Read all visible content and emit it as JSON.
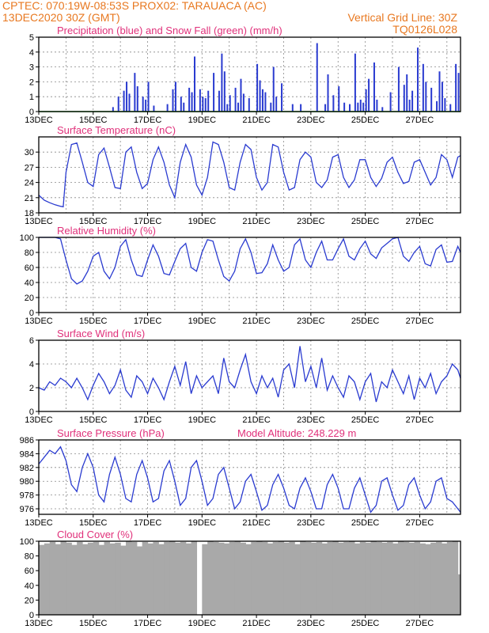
{
  "header": {
    "line1_left": "CPTEC:   070:19W-08:53S   PROX02: TARAUACA (AC)",
    "line2_left": "13DEC2020 30Z (GMT)",
    "line2_right": "Vertical Grid Line: 30Z",
    "line3_right": "TQ0126L028"
  },
  "colors": {
    "header": "#e87820",
    "title": "#e0307a",
    "series": "#2a3bd0",
    "snow": "#1fa01f",
    "cloud": "#a9a9a9",
    "grid": "#888888"
  },
  "x_labels": [
    "13DEC",
    "15DEC",
    "17DEC",
    "19DEC",
    "21DEC",
    "23DEC",
    "25DEC",
    "27DEC"
  ],
  "chart_data": [
    {
      "type": "bar",
      "title": "Precipitation (blue) and Snow Fall (green) (mm/h)",
      "ylim": [
        0,
        5
      ],
      "yticks": [
        0,
        1,
        2,
        3,
        4,
        5
      ],
      "series": [
        {
          "name": "Precipitation",
          "x": [
            2.7,
            2.9,
            3.1,
            3.2,
            3.3,
            3.5,
            3.6,
            3.8,
            3.9,
            4.0,
            4.2,
            4.7,
            4.9,
            5.0,
            5.2,
            5.3,
            5.5,
            5.6,
            5.7,
            5.9,
            6.0,
            6.1,
            6.2,
            6.4,
            6.6,
            6.7,
            6.8,
            6.9,
            7.0,
            7.2,
            7.3,
            7.4,
            7.5,
            7.7,
            8.0,
            8.1,
            8.2,
            8.3,
            8.5,
            8.6,
            8.7,
            8.9,
            9.3,
            9.6,
            10.2,
            10.5,
            10.6,
            10.8,
            11.0,
            11.2,
            11.4,
            11.6,
            11.7,
            11.8,
            11.9,
            12.0,
            12.1,
            12.3,
            12.4,
            12.6,
            12.9,
            13.2,
            13.4,
            13.5,
            13.6,
            13.7,
            13.9,
            14.1,
            14.2,
            14.4,
            14.6,
            14.7,
            14.8,
            14.9,
            15.1,
            15.3,
            15.4
          ],
          "values": [
            0.3,
            1.0,
            1.4,
            2.0,
            1.2,
            2.6,
            1.7,
            1.0,
            0.8,
            2.0,
            0.4,
            0.5,
            1.5,
            2.0,
            1.0,
            0.6,
            1.6,
            1.3,
            3.7,
            1.5,
            1.0,
            0.9,
            1.4,
            2.6,
            1.4,
            3.9,
            2.7,
            0.5,
            1.1,
            1.6,
            0.6,
            2.2,
            1.2,
            0.9,
            3.2,
            2.1,
            1.5,
            1.3,
            0.6,
            3.0,
            1.0,
            1.9,
            0.5,
            0.5,
            4.6,
            0.5,
            2.5,
            1.1,
            1.7,
            0.6,
            0.5,
            3.9,
            0.6,
            0.8,
            0.6,
            1.5,
            2.2,
            3.3,
            0.8,
            0.3,
            1.3,
            3.0,
            1.8,
            2.5,
            0.8,
            1.4,
            4.3,
            3.2,
            2.0,
            1.6,
            0.7,
            2.7,
            2.0,
            0.9,
            0.5,
            3.2,
            2.6
          ]
        },
        {
          "name": "Snow Fall",
          "x": [
            0,
            15.5
          ],
          "values": [
            0,
            0
          ]
        }
      ]
    },
    {
      "type": "line",
      "title": "Surface Temperature (nC)",
      "ylim": [
        18,
        33
      ],
      "yticks": [
        18,
        21,
        24,
        27,
        30
      ],
      "series": [
        {
          "name": "Temperature",
          "x": [
            0,
            0.2,
            0.4,
            0.6,
            0.8,
            0.9,
            1.0,
            1.2,
            1.4,
            1.6,
            1.8,
            2.0,
            2.2,
            2.4,
            2.6,
            2.8,
            3.0,
            3.2,
            3.4,
            3.6,
            3.8,
            4.0,
            4.2,
            4.4,
            4.6,
            4.8,
            5.0,
            5.2,
            5.4,
            5.6,
            5.8,
            6.0,
            6.2,
            6.4,
            6.6,
            6.8,
            7.0,
            7.2,
            7.4,
            7.6,
            7.8,
            8.0,
            8.2,
            8.4,
            8.6,
            8.8,
            9.0,
            9.2,
            9.4,
            9.6,
            9.8,
            10.0,
            10.2,
            10.4,
            10.6,
            10.8,
            11.0,
            11.2,
            11.4,
            11.6,
            11.8,
            12.0,
            12.2,
            12.4,
            12.6,
            12.8,
            13.0,
            13.2,
            13.4,
            13.6,
            13.8,
            14.0,
            14.2,
            14.4,
            14.6,
            14.8,
            15.0,
            15.2,
            15.4,
            15.5
          ],
          "values": [
            21.5,
            20.5,
            20.0,
            19.6,
            19.3,
            19.2,
            26.0,
            31.5,
            31.8,
            28.0,
            24.0,
            23.2,
            29.5,
            30.8,
            27.0,
            23.0,
            22.8,
            30.0,
            31.0,
            26.0,
            22.8,
            23.8,
            28.5,
            31.0,
            28.0,
            23.5,
            21.0,
            28.0,
            31.5,
            29.0,
            23.5,
            21.5,
            25.0,
            32.0,
            31.5,
            28.0,
            23.0,
            22.5,
            28.0,
            31.5,
            30.5,
            25.0,
            22.5,
            24.0,
            31.5,
            31.0,
            26.0,
            22.5,
            23.0,
            28.5,
            30.0,
            29.0,
            24.0,
            23.0,
            24.5,
            29.0,
            29.5,
            25.0,
            23.0,
            24.5,
            28.5,
            28.5,
            25.0,
            23.2,
            24.8,
            28.0,
            29.0,
            26.0,
            23.8,
            24.2,
            28.0,
            28.5,
            26.0,
            23.5,
            25.0,
            29.5,
            28.5,
            25.0,
            29.0,
            29.3
          ]
        }
      ]
    },
    {
      "type": "line",
      "title": "Relative Humidity (%)",
      "ylim": [
        0,
        100
      ],
      "yticks": [
        0,
        20,
        40,
        60,
        80,
        100
      ],
      "series": [
        {
          "name": "Relative Humidity",
          "x": [
            0,
            0.3,
            0.6,
            0.8,
            1.0,
            1.2,
            1.4,
            1.6,
            1.8,
            2.0,
            2.2,
            2.4,
            2.6,
            2.8,
            3.0,
            3.2,
            3.4,
            3.6,
            3.8,
            4.0,
            4.2,
            4.4,
            4.6,
            4.8,
            5.0,
            5.2,
            5.4,
            5.6,
            5.8,
            6.0,
            6.2,
            6.4,
            6.6,
            6.8,
            7.0,
            7.2,
            7.4,
            7.6,
            7.8,
            8.0,
            8.2,
            8.4,
            8.6,
            8.8,
            9.0,
            9.2,
            9.4,
            9.6,
            9.8,
            10.0,
            10.2,
            10.4,
            10.6,
            10.8,
            11.0,
            11.2,
            11.4,
            11.6,
            11.8,
            12.0,
            12.2,
            12.4,
            12.6,
            12.8,
            13.0,
            13.2,
            13.4,
            13.6,
            13.8,
            14.0,
            14.2,
            14.4,
            14.6,
            14.8,
            15.0,
            15.2,
            15.4,
            15.5
          ],
          "values": [
            100,
            100,
            100,
            98,
            70,
            45,
            38,
            42,
            55,
            75,
            80,
            55,
            45,
            60,
            88,
            97,
            70,
            50,
            48,
            70,
            90,
            75,
            52,
            50,
            68,
            85,
            92,
            60,
            55,
            80,
            97,
            95,
            70,
            48,
            42,
            55,
            85,
            98,
            80,
            52,
            53,
            65,
            90,
            70,
            55,
            60,
            90,
            98,
            70,
            60,
            80,
            95,
            70,
            70,
            85,
            98,
            75,
            70,
            85,
            95,
            78,
            72,
            86,
            92,
            98,
            100,
            75,
            68,
            80,
            88,
            65,
            62,
            84,
            90,
            67,
            68,
            88,
            80
          ]
        }
      ]
    },
    {
      "type": "line",
      "title": "Surface Wind (m/s)",
      "ylim": [
        0,
        6
      ],
      "yticks": [
        0,
        2,
        4,
        6
      ],
      "series": [
        {
          "name": "Surface Wind",
          "x": [
            0,
            0.2,
            0.4,
            0.6,
            0.8,
            1.0,
            1.2,
            1.4,
            1.6,
            1.8,
            2.0,
            2.2,
            2.4,
            2.6,
            2.8,
            3.0,
            3.2,
            3.4,
            3.6,
            3.8,
            4.0,
            4.2,
            4.4,
            4.6,
            4.8,
            5.0,
            5.2,
            5.4,
            5.6,
            5.8,
            6.0,
            6.2,
            6.4,
            6.6,
            6.8,
            7.0,
            7.2,
            7.4,
            7.6,
            7.8,
            8.0,
            8.2,
            8.4,
            8.6,
            8.8,
            9.0,
            9.2,
            9.4,
            9.6,
            9.8,
            10.0,
            10.2,
            10.4,
            10.6,
            10.8,
            11.0,
            11.2,
            11.4,
            11.6,
            11.8,
            12.0,
            12.2,
            12.4,
            12.6,
            12.8,
            13.0,
            13.2,
            13.4,
            13.6,
            13.8,
            14.0,
            14.2,
            14.4,
            14.6,
            14.8,
            15.0,
            15.2,
            15.4,
            15.5
          ],
          "values": [
            2.0,
            1.8,
            2.5,
            2.2,
            2.8,
            2.5,
            2.0,
            2.8,
            2.0,
            1.0,
            2.2,
            3.2,
            2.5,
            1.5,
            2.2,
            3.5,
            1.8,
            1.2,
            3.0,
            2.5,
            1.5,
            2.8,
            2.0,
            1.0,
            2.5,
            3.8,
            2.2,
            4.2,
            1.5,
            3.0,
            2.0,
            2.5,
            3.0,
            1.5,
            4.5,
            2.5,
            2.0,
            3.5,
            4.8,
            2.5,
            1.5,
            3.0,
            2.0,
            2.8,
            1.2,
            3.5,
            4.0,
            2.0,
            5.5,
            2.5,
            3.8,
            2.0,
            4.5,
            1.8,
            3.0,
            2.0,
            1.2,
            3.0,
            2.5,
            1.0,
            2.5,
            3.2,
            0.8,
            2.5,
            2.0,
            3.5,
            2.5,
            1.5,
            3.0,
            1.0,
            2.8,
            2.0,
            3.2,
            1.5,
            2.5,
            3.0,
            4.0,
            3.5,
            2.8
          ]
        }
      ]
    },
    {
      "type": "line",
      "title": "Surface Pressure (hPa)",
      "annotation": "Model Altitude: 248.229  m",
      "ylim": [
        975.2,
        986
      ],
      "yticks": [
        976,
        978,
        980,
        982,
        984,
        986
      ],
      "series": [
        {
          "name": "Surface Pressure",
          "x": [
            0,
            0.2,
            0.4,
            0.6,
            0.8,
            1.0,
            1.2,
            1.4,
            1.6,
            1.8,
            2.0,
            2.2,
            2.4,
            2.6,
            2.8,
            3.0,
            3.2,
            3.4,
            3.6,
            3.8,
            4.0,
            4.2,
            4.4,
            4.6,
            4.8,
            5.0,
            5.2,
            5.4,
            5.6,
            5.8,
            6.0,
            6.2,
            6.4,
            6.6,
            6.8,
            7.0,
            7.2,
            7.4,
            7.6,
            7.8,
            8.0,
            8.2,
            8.4,
            8.6,
            8.8,
            9.0,
            9.2,
            9.4,
            9.6,
            9.8,
            10.0,
            10.2,
            10.4,
            10.6,
            10.8,
            11.0,
            11.2,
            11.4,
            11.6,
            11.8,
            12.0,
            12.2,
            12.4,
            12.6,
            12.8,
            13.0,
            13.2,
            13.4,
            13.6,
            13.8,
            14.0,
            14.2,
            14.4,
            14.6,
            14.8,
            15.0,
            15.2,
            15.4,
            15.5
          ],
          "values": [
            982.5,
            983.5,
            984.5,
            984.0,
            985.0,
            983.0,
            979.5,
            978.5,
            982.0,
            984.0,
            982.0,
            978.0,
            977.0,
            981.0,
            983.5,
            981.0,
            977.5,
            977.0,
            981.0,
            983.0,
            980.5,
            977.0,
            977.5,
            981.5,
            983.0,
            980.0,
            976.5,
            977.5,
            982.0,
            983.0,
            980.0,
            976.5,
            977.5,
            981.0,
            982.0,
            979.0,
            976.0,
            977.0,
            980.0,
            981.0,
            978.5,
            975.8,
            976.5,
            979.5,
            981.0,
            979.0,
            976.5,
            976.0,
            979.0,
            980.5,
            978.5,
            976.0,
            976.0,
            979.5,
            981.0,
            979.0,
            976.0,
            976.0,
            979.0,
            980.5,
            978.0,
            975.5,
            976.5,
            980.0,
            980.5,
            978.0,
            975.8,
            976.5,
            979.5,
            980.5,
            978.0,
            976.0,
            977.0,
            980.0,
            980.5,
            977.5,
            977.0,
            976.0,
            975.5
          ]
        }
      ]
    },
    {
      "type": "bar",
      "title": "Cloud Cover (%)",
      "ylim": [
        0,
        100
      ],
      "yticks": [
        0,
        20,
        40,
        60,
        80,
        100
      ],
      "series": [
        {
          "name": "Cloud Cover",
          "x": [
            0,
            0.2,
            0.4,
            0.6,
            0.8,
            1.0,
            1.2,
            1.4,
            1.6,
            1.8,
            2.0,
            2.2,
            2.4,
            2.6,
            2.8,
            3.0,
            3.2,
            3.4,
            3.6,
            3.8,
            4.0,
            4.2,
            4.4,
            4.6,
            4.8,
            5.0,
            5.2,
            5.4,
            5.6,
            5.8,
            6.0,
            6.2,
            6.4,
            6.6,
            6.8,
            7.0,
            7.2,
            7.4,
            7.6,
            7.8,
            8.0,
            8.2,
            8.4,
            8.6,
            8.8,
            9.0,
            9.2,
            9.4,
            9.6,
            9.8,
            10.0,
            10.2,
            10.4,
            10.6,
            10.8,
            11.0,
            11.2,
            11.4,
            11.6,
            11.8,
            12.0,
            12.2,
            12.4,
            12.6,
            12.8,
            13.0,
            13.2,
            13.4,
            13.6,
            13.8,
            14.0,
            14.2,
            14.4,
            14.6,
            14.8,
            15.0,
            15.2,
            15.4,
            15.6
          ],
          "values": [
            95,
            97,
            99,
            96,
            100,
            98,
            95,
            99,
            96,
            98,
            99,
            95,
            99,
            97,
            98,
            94,
            100,
            99,
            93,
            99,
            97,
            99,
            96,
            99,
            100,
            98,
            99,
            97,
            100,
            0,
            96,
            100,
            99,
            98,
            97,
            99,
            100,
            98,
            96,
            99,
            100,
            99,
            97,
            99,
            100,
            98,
            99,
            96,
            100,
            99,
            98,
            99,
            97,
            99,
            100,
            98,
            99,
            100,
            97,
            99,
            98,
            100,
            99,
            98,
            99,
            97,
            100,
            99,
            98,
            99,
            97,
            96,
            98,
            99,
            97,
            99,
            100,
            55,
            98
          ]
        }
      ]
    }
  ]
}
